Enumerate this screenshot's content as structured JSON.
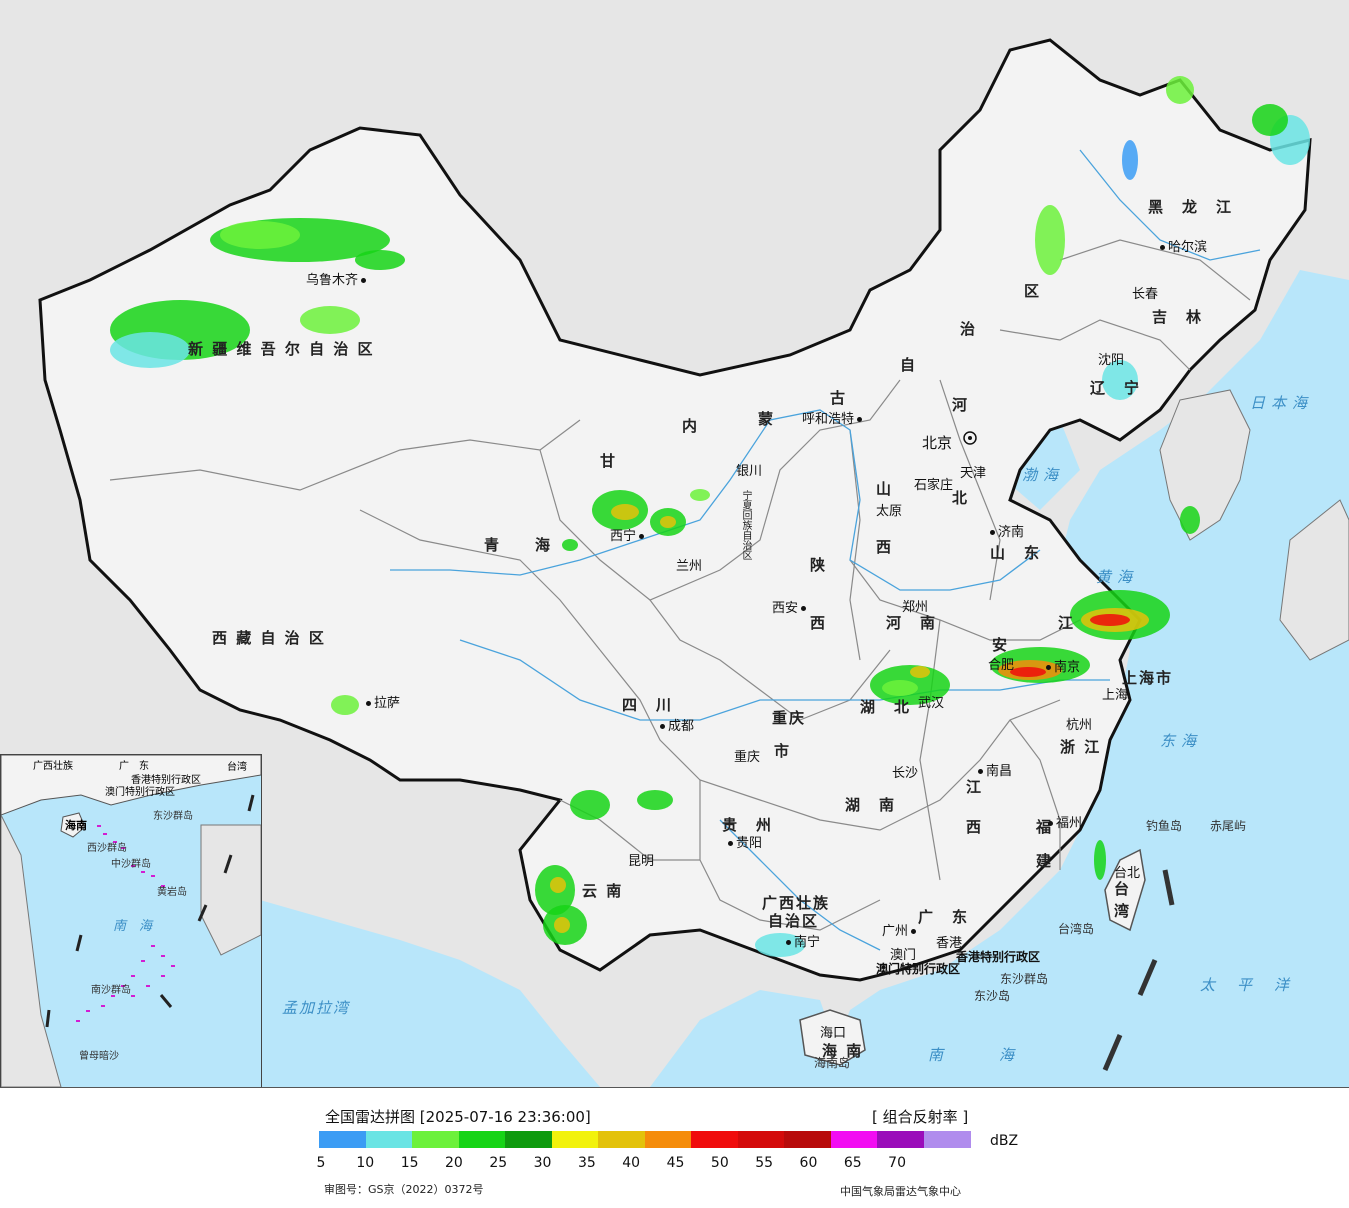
{
  "map": {
    "provinces": [
      {
        "key": "xinjiang",
        "text": "新 疆 维 吾 尔 自 治 区"
      },
      {
        "key": "xizang",
        "text": "西 藏 自 治 区"
      },
      {
        "key": "qinghai",
        "text": "青　　海"
      },
      {
        "key": "gansu",
        "text": "甘"
      },
      {
        "key": "sichuan",
        "text": "四　川"
      },
      {
        "key": "yunnan",
        "text": "云 南"
      },
      {
        "key": "guizhou",
        "text": "贵　州"
      },
      {
        "key": "guangxi1",
        "text": "广西壮族"
      },
      {
        "key": "guangxi2",
        "text": "自治区"
      },
      {
        "key": "guangdong",
        "text": "广　东"
      },
      {
        "key": "hainan",
        "text": "海 南"
      },
      {
        "key": "hunan",
        "text": "湖　南"
      },
      {
        "key": "hubei",
        "text": "湖　北"
      },
      {
        "key": "jiangxi1",
        "text": "江"
      },
      {
        "key": "jiangxi2",
        "text": "西"
      },
      {
        "key": "fujian1",
        "text": "福"
      },
      {
        "key": "fujian2",
        "text": "建"
      },
      {
        "key": "zhejiang",
        "text": "浙 江"
      },
      {
        "key": "anhui",
        "text": "安"
      },
      {
        "key": "jiangsu",
        "text": "江"
      },
      {
        "key": "henan",
        "text": "河　南"
      },
      {
        "key": "shandong",
        "text": "山　东"
      },
      {
        "key": "hebei",
        "text": "北"
      },
      {
        "key": "shanxi1",
        "text": "山"
      },
      {
        "key": "shanxi2",
        "text": "西"
      },
      {
        "key": "shaanxi1",
        "text": "陕"
      },
      {
        "key": "shaanxi2",
        "text": "西"
      },
      {
        "key": "chongqing1",
        "text": "重庆"
      },
      {
        "key": "chongqing2",
        "text": "市"
      },
      {
        "key": "nmg1",
        "text": "内"
      },
      {
        "key": "nmg2",
        "text": "蒙"
      },
      {
        "key": "nmg3",
        "text": "古"
      },
      {
        "key": "nmg4",
        "text": "自"
      },
      {
        "key": "nmg5",
        "text": "治"
      },
      {
        "key": "nmg6",
        "text": "区"
      },
      {
        "key": "heilongjiang",
        "text": "黑　龙　江"
      },
      {
        "key": "jilin",
        "text": "吉　林"
      },
      {
        "key": "liaoning",
        "text": "辽　宁"
      },
      {
        "key": "shanghai",
        "text": "上海市"
      },
      {
        "key": "taiwan1",
        "text": "台"
      },
      {
        "key": "taiwan2",
        "text": "湾"
      },
      {
        "key": "ningxia",
        "text": "宁夏回族自治区"
      },
      {
        "key": "hebei2",
        "text": "河"
      },
      {
        "key": "tianjin",
        "text": "天津"
      }
    ],
    "cities": [
      {
        "key": "urumqi",
        "text": "乌鲁木齐"
      },
      {
        "key": "lhasa",
        "text": "拉萨"
      },
      {
        "key": "xining",
        "text": "西宁"
      },
      {
        "key": "lanzhou",
        "text": "兰州"
      },
      {
        "key": "yinchuan",
        "text": "银川"
      },
      {
        "key": "chengdu",
        "text": "成都"
      },
      {
        "key": "chongqing",
        "text": "重庆"
      },
      {
        "key": "kunming",
        "text": "昆明"
      },
      {
        "key": "guiyang",
        "text": "贵阳"
      },
      {
        "key": "nanning",
        "text": "南宁"
      },
      {
        "key": "guangzhou",
        "text": "广州"
      },
      {
        "key": "haikou",
        "text": "海口"
      },
      {
        "key": "changsha",
        "text": "长沙"
      },
      {
        "key": "wuhan",
        "text": "武汉"
      },
      {
        "key": "nanchang",
        "text": "南昌"
      },
      {
        "key": "fuzhou",
        "text": "福州"
      },
      {
        "key": "hangzhou",
        "text": "杭州"
      },
      {
        "key": "shanghai",
        "text": "上海"
      },
      {
        "key": "nanjing",
        "text": "南京"
      },
      {
        "key": "hefei",
        "text": "合肥"
      },
      {
        "key": "zhengzhou",
        "text": "郑州"
      },
      {
        "key": "xian",
        "text": "西安"
      },
      {
        "key": "taiyuan",
        "text": "太原"
      },
      {
        "key": "shijiazhuang",
        "text": "石家庄"
      },
      {
        "key": "jinan",
        "text": "济南"
      },
      {
        "key": "beijing",
        "text": "北京"
      },
      {
        "key": "tianjin",
        "text": "天津"
      },
      {
        "key": "hohhot",
        "text": "呼和浩特"
      },
      {
        "key": "shenyang",
        "text": "沈阳"
      },
      {
        "key": "changchun",
        "text": "长春"
      },
      {
        "key": "harbin",
        "text": "哈尔滨"
      },
      {
        "key": "taibei",
        "text": "台北"
      },
      {
        "key": "macau",
        "text": "澳门"
      },
      {
        "key": "hongkong",
        "text": "香港"
      }
    ],
    "seas": [
      {
        "key": "japan",
        "text": "日本海"
      },
      {
        "key": "bohai",
        "text": "渤海"
      },
      {
        "key": "yellow",
        "text": "黄海"
      },
      {
        "key": "east",
        "text": "东海"
      },
      {
        "key": "south",
        "text": "南海"
      },
      {
        "key": "pacific",
        "text": "太平洋"
      },
      {
        "key": "bengal",
        "text": "孟加拉湾"
      }
    ],
    "islands": [
      {
        "key": "diaoyu",
        "text": "钓鱼岛"
      },
      {
        "key": "chiwei",
        "text": "赤尾屿"
      },
      {
        "key": "taiwan_island",
        "text": "台湾岛"
      },
      {
        "key": "dongsha_islands",
        "text": "东沙群岛"
      },
      {
        "key": "dongsha_island",
        "text": "东沙岛"
      },
      {
        "key": "hainan_island",
        "text": "海南岛"
      },
      {
        "key": "hk_sar",
        "text": "香港特别行政区"
      },
      {
        "key": "macau_sar",
        "text": "澳门特别行政区"
      }
    ],
    "inset": {
      "labels": [
        {
          "key": "guangxi",
          "text": "广西壮族"
        },
        {
          "key": "guangdong",
          "text": "广　东"
        },
        {
          "key": "taiwan",
          "text": "台湾"
        },
        {
          "key": "hk",
          "text": "香港特别行政区"
        },
        {
          "key": "macau",
          "text": "澳门特别行政区"
        },
        {
          "key": "dongsha",
          "text": "东沙群岛"
        },
        {
          "key": "hainan",
          "text": "海南"
        },
        {
          "key": "xisha",
          "text": "西沙群岛"
        },
        {
          "key": "zhongsha",
          "text": "中沙群岛"
        },
        {
          "key": "huangyan",
          "text": "黄岩岛"
        },
        {
          "key": "nanhai",
          "text": "南　海"
        },
        {
          "key": "nansha",
          "text": "南沙群岛"
        },
        {
          "key": "zengmu",
          "text": "曾母暗沙"
        }
      ]
    }
  },
  "legend": {
    "title": "全国雷达拼图 [2025-07-16 23:36:00]",
    "product": "[ 组合反射率 ]",
    "unit": "dBZ",
    "approval": "审图号：GS京（2022）0372号",
    "agency": "中国气象局雷达气象中心",
    "scale": [
      {
        "from": 5,
        "color": "#3b9cf4"
      },
      {
        "from": 10,
        "color": "#6ae4e4"
      },
      {
        "from": 15,
        "color": "#6cf13b"
      },
      {
        "from": 20,
        "color": "#16d416"
      },
      {
        "from": 25,
        "color": "#0e9a0e"
      },
      {
        "from": 30,
        "color": "#f2f20c"
      },
      {
        "from": 35,
        "color": "#e3c20a"
      },
      {
        "from": 40,
        "color": "#f58c0a"
      },
      {
        "from": 45,
        "color": "#f00c0c"
      },
      {
        "from": 50,
        "color": "#d40a0a"
      },
      {
        "from": 55,
        "color": "#b80a0a"
      },
      {
        "from": 60,
        "color": "#f20cf2"
      },
      {
        "from": 65,
        "color": "#9a0cba"
      },
      {
        "from": 70,
        "color": "#b08ced"
      }
    ],
    "ticks": [
      "5",
      "10",
      "15",
      "20",
      "25",
      "30",
      "35",
      "40",
      "45",
      "50",
      "55",
      "60",
      "65",
      "70"
    ]
  }
}
